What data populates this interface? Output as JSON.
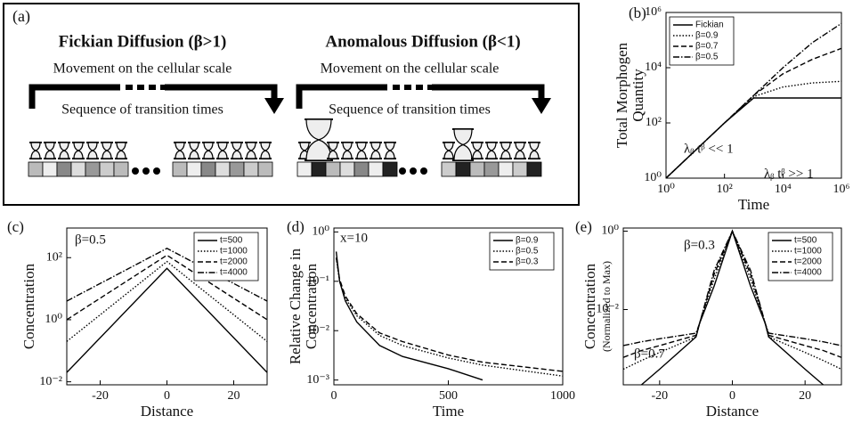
{
  "diagram": {
    "label": "(a)",
    "left": {
      "title": "Fickian Diffusion (β>1)",
      "movement": "Movement on the cellular scale",
      "sequence": "Sequence of transition times"
    },
    "right": {
      "title": "Anomalous Diffusion (β<1)",
      "movement": "Movement on the cellular scale",
      "sequence": "Sequence of transition times"
    }
  },
  "chart_data": [
    {
      "type": "line",
      "label": "(b)",
      "xlabel": "Time",
      "ylabel": [
        "Total Morphogen",
        "Quantity"
      ],
      "xscale": "log",
      "yscale": "log",
      "xlim": [
        1,
        1000000
      ],
      "ylim": [
        1,
        1000000
      ],
      "xticks": [
        {
          "value": 1,
          "label": "10⁰"
        },
        {
          "value": 100,
          "label": "10²"
        },
        {
          "value": 10000,
          "label": "10⁴"
        },
        {
          "value": 1000000,
          "label": "10⁶"
        }
      ],
      "yticks": [
        {
          "value": 1,
          "label": "10⁰"
        },
        {
          "value": 100,
          "label": "10²"
        },
        {
          "value": 10000,
          "label": "10⁴"
        },
        {
          "value": 1000000,
          "label": "10⁶"
        }
      ],
      "legend": "upper left",
      "annotations": [
        "λᵦ tᵝ << 1",
        "λᵦ tᵝ >> 1"
      ],
      "x": [
        1,
        10,
        100,
        1000,
        10000,
        100000,
        1000000
      ],
      "series": [
        {
          "name": "Fickian",
          "color": "#000000",
          "dash": "solid",
          "values": [
            1,
            10,
            100,
            800,
            800,
            800,
            800
          ]
        },
        {
          "name": "β=0.9",
          "color": "#000000",
          "dash": "dotted",
          "values": [
            1,
            10,
            100,
            900,
            2000,
            2800,
            3200
          ]
        },
        {
          "name": "β=0.7",
          "color": "#000000",
          "dash": "dashed",
          "values": [
            1,
            10,
            100,
            1000,
            6000,
            20000,
            50000
          ]
        },
        {
          "name": "β=0.5",
          "color": "#000000",
          "dash": "dashdot",
          "values": [
            1,
            10,
            100,
            1000,
            10000,
            80000,
            400000
          ]
        }
      ]
    },
    {
      "type": "line",
      "label": "(c)",
      "xlabel": "Distance",
      "ylabel": [
        "Concentration"
      ],
      "xscale": "linear",
      "yscale": "log",
      "xlim": [
        -30,
        30
      ],
      "ylim": [
        0.008,
        900
      ],
      "xticks": [
        -20,
        0,
        20
      ],
      "yticks": [
        {
          "value": 0.01,
          "label": "10⁻²"
        },
        {
          "value": 1,
          "label": "10⁰"
        },
        {
          "value": 100,
          "label": "10²"
        }
      ],
      "legend": "upper right",
      "annotations": [
        "β=0.5"
      ],
      "x": [
        -30,
        0,
        30
      ],
      "series": [
        {
          "name": "t=500",
          "color": "#000000",
          "dash": "solid",
          "values": [
            0.02,
            45,
            0.02
          ]
        },
        {
          "name": "t=1000",
          "color": "#000000",
          "dash": "dotted",
          "values": [
            0.2,
            75,
            0.2
          ]
        },
        {
          "name": "t=2000",
          "color": "#000000",
          "dash": "dashed",
          "values": [
            1,
            120,
            1
          ]
        },
        {
          "name": "t=4000",
          "color": "#000000",
          "dash": "dashdot",
          "values": [
            4,
            200,
            4
          ]
        }
      ]
    },
    {
      "type": "line",
      "label": "(d)",
      "xlabel": "Time",
      "ylabel": [
        "Relative Change in",
        "Concentration"
      ],
      "xscale": "linear",
      "yscale": "log",
      "xlim": [
        0,
        1000
      ],
      "ylim": [
        0.0008,
        1.2
      ],
      "xticks": [
        0,
        500,
        1000
      ],
      "yticks": [
        {
          "value": 0.001,
          "label": "10⁻³"
        },
        {
          "value": 0.01,
          "label": "10⁻²"
        },
        {
          "value": 0.1,
          "label": "10⁻¹"
        },
        {
          "value": 1,
          "label": "10⁰"
        }
      ],
      "legend": "upper right",
      "annotations": [
        "x=10"
      ],
      "x": [
        10,
        25,
        50,
        100,
        200,
        300,
        500,
        650,
        1000
      ],
      "series": [
        {
          "name": "β=0.9",
          "color": "#000000",
          "dash": "solid",
          "values": [
            0.4,
            0.1,
            0.04,
            0.015,
            0.005,
            0.003,
            0.0017,
            0.001,
            null
          ]
        },
        {
          "name": "β=0.5",
          "color": "#000000",
          "dash": "dotted",
          "values": [
            0.3,
            0.1,
            0.045,
            0.02,
            0.008,
            0.005,
            0.0028,
            0.002,
            0.0012
          ]
        },
        {
          "name": "β=0.3",
          "color": "#000000",
          "dash": "dashed",
          "values": [
            0.3,
            0.11,
            0.05,
            0.022,
            0.009,
            0.006,
            0.0032,
            0.0023,
            0.0015
          ]
        }
      ]
    },
    {
      "type": "line",
      "label": "(e)",
      "xlabel": "Distance",
      "ylabel": [
        "Concentration",
        "(Normalized to Max)"
      ],
      "xscale": "linear",
      "yscale": "log",
      "xlim": [
        -30,
        30
      ],
      "ylim": [
        0.00012,
        1.2
      ],
      "xticks": [
        -20,
        0,
        20
      ],
      "yticks": [
        {
          "value": 0.01,
          "label": "10⁻²"
        },
        {
          "value": 1,
          "label": "10⁰"
        }
      ],
      "legend": "upper right",
      "annotations": [
        "β=0.3",
        "β=0.7"
      ],
      "x": [
        -30,
        -25,
        -20,
        -10,
        -9,
        -5,
        0,
        5,
        9,
        10,
        20,
        25,
        30
      ],
      "series": [
        {
          "name": "t=500",
          "color": "#000000",
          "dash": "solid",
          "values": [
            null,
            0.00012,
            0.0003,
            0.002,
            0.0045,
            0.04,
            1,
            0.04,
            0.0045,
            0.002,
            0.0003,
            0.00012,
            null
          ]
        },
        {
          "name": "t=1000",
          "color": "#000000",
          "dash": "dotted",
          "values": [
            0.0003,
            0.0005,
            0.0008,
            0.002,
            0.0045,
            0.06,
            1,
            0.06,
            0.0045,
            0.002,
            0.0008,
            0.0005,
            0.0003
          ]
        },
        {
          "name": "t=2000",
          "color": "#000000",
          "dash": "dashed",
          "values": [
            0.0006,
            0.0009,
            0.0012,
            0.0022,
            0.0045,
            0.08,
            1,
            0.08,
            0.0045,
            0.0022,
            0.0012,
            0.0009,
            0.0006
          ]
        },
        {
          "name": "t=4000",
          "color": "#000000",
          "dash": "dashdot",
          "values": [
            0.0012,
            0.0015,
            0.0018,
            0.0025,
            0.0045,
            0.1,
            1,
            0.1,
            0.0045,
            0.0025,
            0.0018,
            0.0015,
            0.0012
          ]
        }
      ]
    }
  ]
}
